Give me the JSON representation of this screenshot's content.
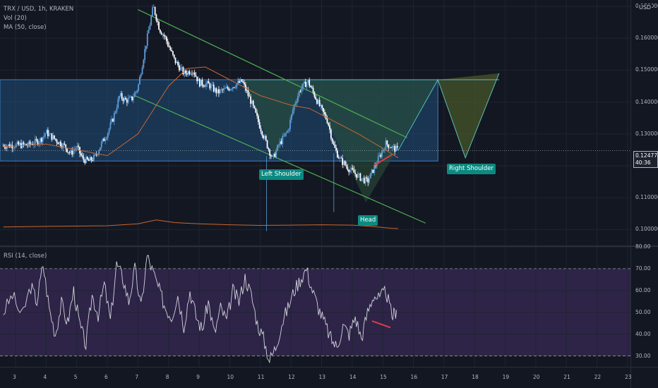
{
  "legend": {
    "symbol": "TRX / USD, 1h, KRAKEN",
    "volume": "Vol (20)",
    "ma": "MA (50, close)",
    "rsi": "RSI (14, close)"
  },
  "annotations": {
    "left_shoulder": "Left Shoulder",
    "right_shoulder": "Right Shoulder",
    "head": "Head"
  },
  "axis": {
    "currency": "USD",
    "price_ticks": [
      "0.170000",
      "0.160000",
      "0.150000",
      "0.140000",
      "0.130000",
      "0.120000",
      "0.110000",
      "0.100000"
    ],
    "rsi_ticks": [
      "80.00",
      "70.00",
      "60.00",
      "50.00",
      "40.00",
      "30.00"
    ],
    "time_ticks": [
      "3",
      "4",
      "5",
      "6",
      "7",
      "8",
      "9",
      "10",
      "11",
      "12",
      "13",
      "14",
      "15",
      "16",
      "17",
      "18",
      "19",
      "20",
      "21",
      "22",
      "23"
    ]
  },
  "last_price": {
    "value": "0.124774",
    "countdown": "40:36"
  },
  "colors": {
    "background": "#131722",
    "grid": "#1f2433",
    "up_candle": "#5d9cd8",
    "down_candle": "#ffffff",
    "ma_line": "#c8672f",
    "channel": "#4caf50",
    "pattern_fill": "#2a5238",
    "zone_fill": "#1f4f7a",
    "rsi_band": "#2e2448",
    "rsi_line": "#d1d4dc",
    "divergence": "#e03c4a",
    "tag": "#0b8a80"
  },
  "chart_data": {
    "type": "candlestick",
    "symbol": "TRX / USD",
    "interval": "1h",
    "exchange": "KRAKEN",
    "price_range": [
      0.095,
      0.172
    ],
    "rsi_range": [
      25,
      80
    ],
    "x_range_days": [
      2.6,
      23.2
    ],
    "resistance_zone": [
      0.1215,
      0.147
    ],
    "last_price": 0.124774,
    "price_path": [
      [
        2.6,
        0.1263
      ],
      [
        3.0,
        0.1265
      ],
      [
        3.4,
        0.1265
      ],
      [
        3.8,
        0.128
      ],
      [
        4.0,
        0.1305
      ],
      [
        4.2,
        0.129
      ],
      [
        4.4,
        0.1275
      ],
      [
        4.6,
        0.1262
      ],
      [
        4.8,
        0.1238
      ],
      [
        5.0,
        0.126
      ],
      [
        5.2,
        0.122
      ],
      [
        5.4,
        0.1215
      ],
      [
        5.6,
        0.1228
      ],
      [
        5.8,
        0.1268
      ],
      [
        6.0,
        0.1302
      ],
      [
        6.2,
        0.1352
      ],
      [
        6.4,
        0.142
      ],
      [
        6.6,
        0.1405
      ],
      [
        6.8,
        0.141
      ],
      [
        7.0,
        0.1445
      ],
      [
        7.2,
        0.155
      ],
      [
        7.5,
        0.17
      ],
      [
        7.7,
        0.163
      ],
      [
        7.9,
        0.16
      ],
      [
        8.2,
        0.153
      ],
      [
        8.5,
        0.149
      ],
      [
        8.8,
        0.15
      ],
      [
        9.0,
        0.146
      ],
      [
        9.3,
        0.1455
      ],
      [
        9.6,
        0.143
      ],
      [
        10.0,
        0.1445
      ],
      [
        10.4,
        0.1465
      ],
      [
        10.7,
        0.14
      ],
      [
        11.0,
        0.132
      ],
      [
        11.2,
        0.127
      ],
      [
        11.4,
        0.122
      ],
      [
        11.6,
        0.1265
      ],
      [
        11.9,
        0.131
      ],
      [
        12.1,
        0.139
      ],
      [
        12.3,
        0.144
      ],
      [
        12.55,
        0.1465
      ],
      [
        12.8,
        0.1415
      ],
      [
        13.0,
        0.1375
      ],
      [
        13.2,
        0.134
      ],
      [
        13.4,
        0.126
      ],
      [
        13.6,
        0.122
      ],
      [
        13.9,
        0.119
      ],
      [
        14.1,
        0.1175
      ],
      [
        14.3,
        0.116
      ],
      [
        14.5,
        0.115
      ],
      [
        14.7,
        0.119
      ],
      [
        14.9,
        0.123
      ],
      [
        15.1,
        0.127
      ],
      [
        15.3,
        0.1258
      ],
      [
        15.5,
        0.1248
      ]
    ],
    "ma50_path": [
      [
        2.6,
        0.126
      ],
      [
        4.0,
        0.1268
      ],
      [
        5.0,
        0.125
      ],
      [
        6.0,
        0.1232
      ],
      [
        7.0,
        0.13
      ],
      [
        7.5,
        0.1375
      ],
      [
        8.0,
        0.145
      ],
      [
        8.6,
        0.1505
      ],
      [
        9.2,
        0.151
      ],
      [
        10.0,
        0.147
      ],
      [
        11.0,
        0.142
      ],
      [
        12.0,
        0.139
      ],
      [
        12.6,
        0.138
      ],
      [
        13.4,
        0.134
      ],
      [
        14.2,
        0.13
      ],
      [
        15.0,
        0.1255
      ],
      [
        15.5,
        0.1225
      ]
    ],
    "channel_upper": [
      [
        7.0,
        0.169
      ],
      [
        15.8,
        0.1288
      ]
    ],
    "channel_lower": [
      [
        6.9,
        0.142
      ],
      [
        16.4,
        0.102
      ]
    ],
    "head_and_shoulders": {
      "left_shoulder": [
        11.5,
        0.122
      ],
      "head": [
        14.45,
        0.1085
      ],
      "right_shoulder": [
        17.7,
        0.1225
      ],
      "neckline": 0.147
    },
    "projection_path": [
      [
        15.5,
        0.1248
      ],
      [
        16.8,
        0.147
      ],
      [
        17.7,
        0.1225
      ],
      [
        18.8,
        0.149
      ]
    ],
    "price_divergence": [
      [
        14.7,
        0.12
      ],
      [
        15.3,
        0.1235
      ]
    ],
    "rsi_divergence": [
      [
        14.65,
        46
      ],
      [
        15.25,
        43
      ]
    ],
    "rsi_levels": [
      30,
      70
    ],
    "rsi_path": [
      [
        2.6,
        50
      ],
      [
        2.9,
        58
      ],
      [
        3.2,
        48
      ],
      [
        3.5,
        62
      ],
      [
        3.7,
        55
      ],
      [
        3.9,
        72
      ],
      [
        4.1,
        52
      ],
      [
        4.3,
        40
      ],
      [
        4.5,
        54
      ],
      [
        4.7,
        45
      ],
      [
        4.9,
        60
      ],
      [
        5.1,
        44
      ],
      [
        5.3,
        35
      ],
      [
        5.5,
        58
      ],
      [
        5.7,
        49
      ],
      [
        5.9,
        63
      ],
      [
        6.1,
        46
      ],
      [
        6.3,
        72
      ],
      [
        6.5,
        66
      ],
      [
        6.7,
        55
      ],
      [
        6.9,
        70
      ],
      [
        7.1,
        52
      ],
      [
        7.3,
        76
      ],
      [
        7.5,
        68
      ],
      [
        7.7,
        60
      ],
      [
        7.9,
        52
      ],
      [
        8.1,
        48
      ],
      [
        8.3,
        58
      ],
      [
        8.5,
        44
      ],
      [
        8.7,
        60
      ],
      [
        8.9,
        48
      ],
      [
        9.1,
        42
      ],
      [
        9.3,
        55
      ],
      [
        9.5,
        40
      ],
      [
        9.7,
        52
      ],
      [
        9.9,
        46
      ],
      [
        10.1,
        60
      ],
      [
        10.3,
        55
      ],
      [
        10.5,
        66
      ],
      [
        10.7,
        58
      ],
      [
        10.9,
        45
      ],
      [
        11.1,
        38
      ],
      [
        11.3,
        28
      ],
      [
        11.5,
        34
      ],
      [
        11.7,
        45
      ],
      [
        11.9,
        52
      ],
      [
        12.1,
        60
      ],
      [
        12.3,
        65
      ],
      [
        12.5,
        70
      ],
      [
        12.7,
        60
      ],
      [
        12.9,
        52
      ],
      [
        13.1,
        45
      ],
      [
        13.3,
        38
      ],
      [
        13.5,
        34
      ],
      [
        13.7,
        44
      ],
      [
        13.9,
        40
      ],
      [
        14.1,
        48
      ],
      [
        14.3,
        38
      ],
      [
        14.5,
        50
      ],
      [
        14.7,
        58
      ],
      [
        14.9,
        56
      ],
      [
        15.1,
        60
      ],
      [
        15.3,
        48
      ],
      [
        15.45,
        51
      ]
    ],
    "volume_path": [
      [
        2.6,
        0.1008
      ],
      [
        4.0,
        0.101
      ],
      [
        6.0,
        0.1012
      ],
      [
        7.0,
        0.1018
      ],
      [
        7.6,
        0.103
      ],
      [
        8.2,
        0.1022
      ],
      [
        9.0,
        0.1018
      ],
      [
        10.0,
        0.1015
      ],
      [
        11.0,
        0.1013
      ],
      [
        12.0,
        0.1014
      ],
      [
        13.0,
        0.1015
      ],
      [
        14.0,
        0.1014
      ],
      [
        14.6,
        0.101
      ],
      [
        15.3,
        0.1004
      ],
      [
        15.5,
        0.1003
      ]
    ]
  }
}
